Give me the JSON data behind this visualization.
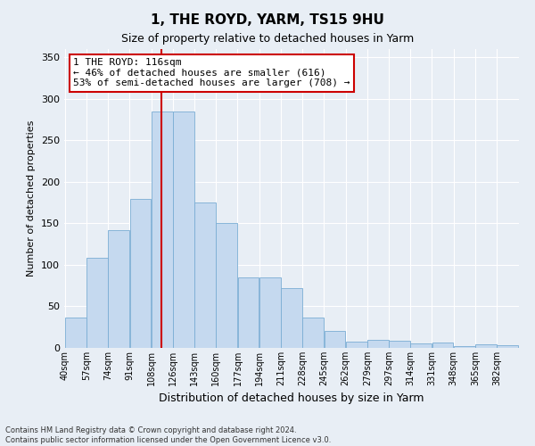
{
  "title": "1, THE ROYD, YARM, TS15 9HU",
  "subtitle": "Size of property relative to detached houses in Yarm",
  "xlabel": "Distribution of detached houses by size in Yarm",
  "ylabel": "Number of detached properties",
  "footer1": "Contains HM Land Registry data © Crown copyright and database right 2024.",
  "footer2": "Contains public sector information licensed under the Open Government Licence v3.0.",
  "annotation_line1": "1 THE ROYD: 116sqm",
  "annotation_line2": "← 46% of detached houses are smaller (616)",
  "annotation_line3": "53% of semi-detached houses are larger (708) →",
  "property_size": 116,
  "bins": [
    40,
    57,
    74,
    91,
    108,
    125,
    142,
    159,
    176,
    193,
    210,
    227,
    244,
    261,
    278,
    295,
    312,
    329,
    346,
    363,
    380
  ],
  "bin_width": 17,
  "labels": [
    "40sqm",
    "57sqm",
    "74sqm",
    "91sqm",
    "108sqm",
    "126sqm",
    "143sqm",
    "160sqm",
    "177sqm",
    "194sqm",
    "211sqm",
    "228sqm",
    "245sqm",
    "262sqm",
    "279sqm",
    "297sqm",
    "314sqm",
    "331sqm",
    "348sqm",
    "365sqm",
    "382sqm"
  ],
  "values": [
    37,
    109,
    142,
    180,
    285,
    285,
    175,
    150,
    85,
    85,
    72,
    37,
    20,
    8,
    10,
    9,
    5,
    6,
    2,
    4,
    3
  ],
  "bar_color": "#c5d9ef",
  "bar_edge_color": "#7aadd4",
  "vline_color": "#cc0000",
  "background_color": "#e8eef5",
  "grid_color": "#ffffff",
  "annotation_box_facecolor": "#ffffff",
  "annotation_box_edgecolor": "#cc0000",
  "ylim": [
    0,
    360
  ],
  "yticks": [
    0,
    50,
    100,
    150,
    200,
    250,
    300,
    350
  ],
  "title_fontsize": 11,
  "subtitle_fontsize": 9,
  "ylabel_fontsize": 8,
  "xlabel_fontsize": 9,
  "tick_fontsize": 8,
  "xtick_fontsize": 7,
  "footer_fontsize": 6,
  "annotation_fontsize": 8
}
